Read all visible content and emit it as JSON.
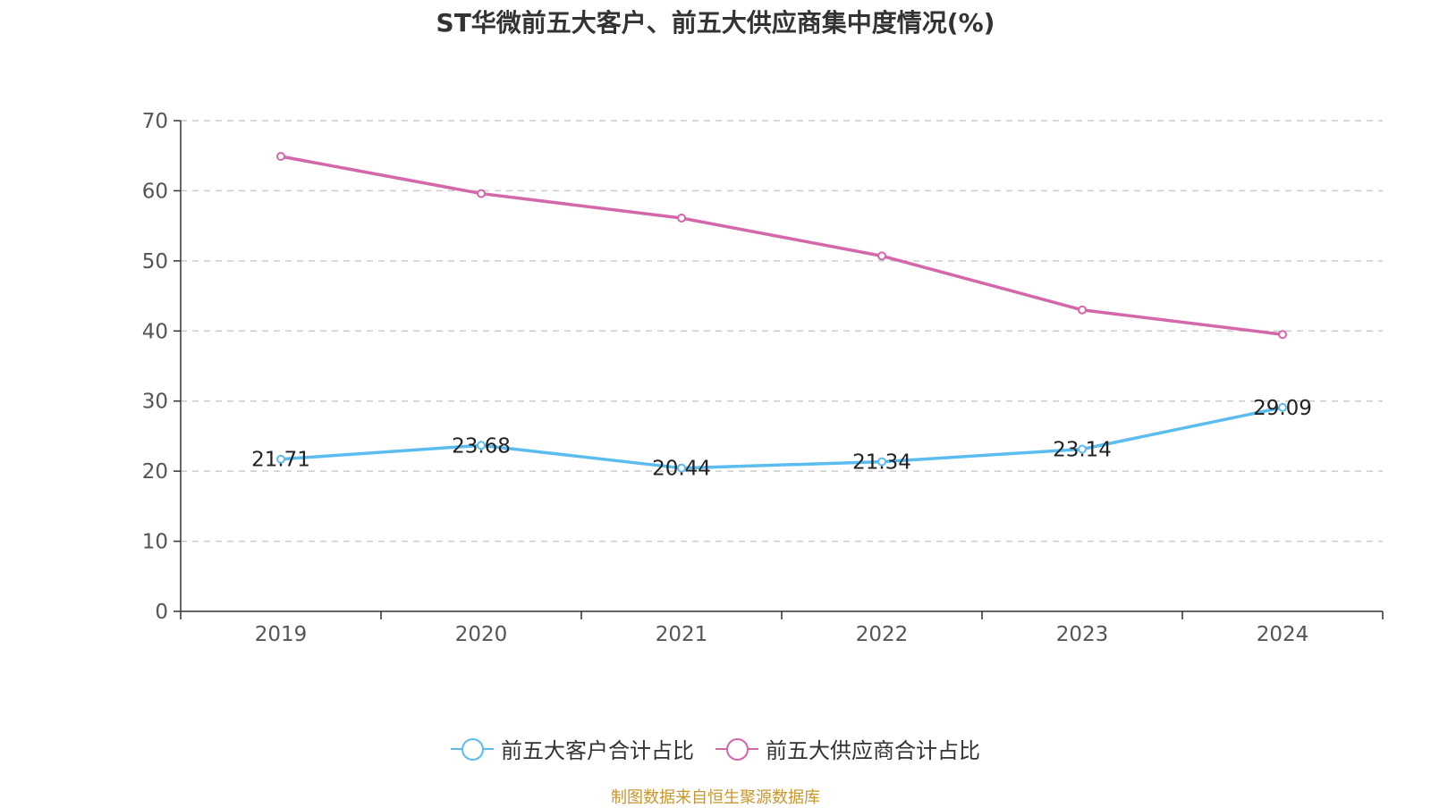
{
  "colors": {
    "series1": "#5bbcef",
    "series2": "#d466aa",
    "grid": "#cccccc",
    "axis": "#333333",
    "source": "#c8962d"
  },
  "chart_data": {
    "type": "line",
    "title": "ST华微前五大客户、前五大供应商集中度情况(%)",
    "categories": [
      "2019",
      "2020",
      "2021",
      "2022",
      "2023",
      "2024"
    ],
    "ylim": [
      0,
      70
    ],
    "yticks": [
      "0",
      "10",
      "20",
      "30",
      "40",
      "50",
      "60",
      "70"
    ],
    "grid": true,
    "legend_position": "bottom-center",
    "series": [
      {
        "name": "前五大客户合计占比",
        "values": [
          21.71,
          23.68,
          20.44,
          21.34,
          23.14,
          29.09
        ],
        "labels": [
          "21.71",
          "23.68",
          "20.44",
          "21.34",
          "23.14",
          "29.09"
        ],
        "color": "#5bbcef"
      },
      {
        "name": "前五大供应商合计占比",
        "values": [
          64.9,
          59.6,
          56.1,
          50.7,
          43.0,
          39.5
        ],
        "color": "#d466aa"
      }
    ]
  },
  "source": "制图数据来自恒生聚源数据库"
}
